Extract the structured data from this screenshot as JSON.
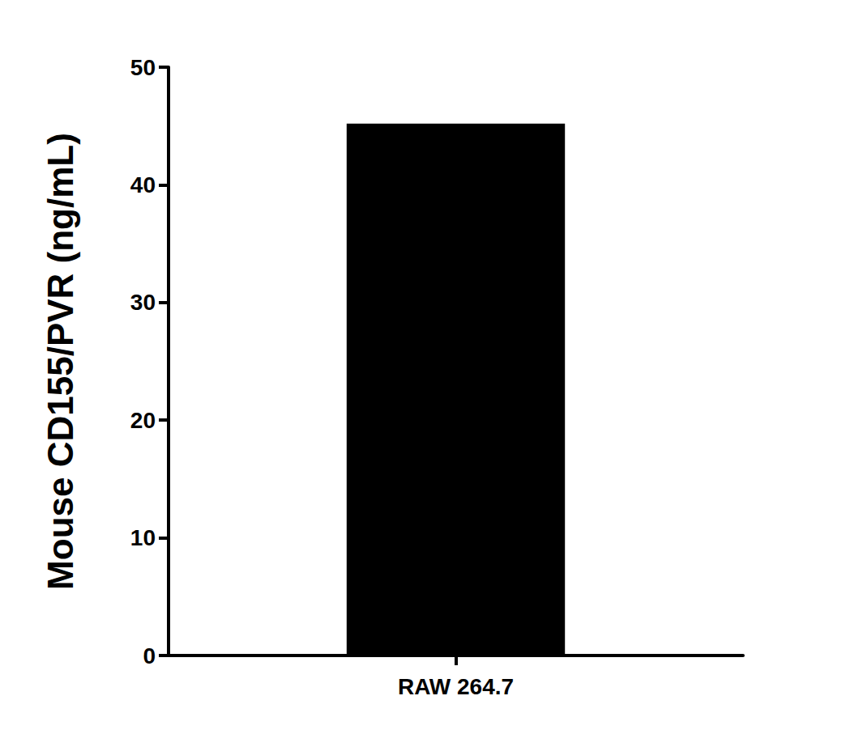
{
  "chart_data": {
    "type": "bar",
    "y_label": "Mouse CD155/PVR (ng/mL)",
    "categories": [
      "RAW 264.7"
    ],
    "values": [
      45.2
    ],
    "color": "#000000",
    "ylim": [
      0,
      50
    ],
    "yticks": [
      0,
      10,
      20,
      30,
      40,
      50
    ],
    "grid": false
  }
}
